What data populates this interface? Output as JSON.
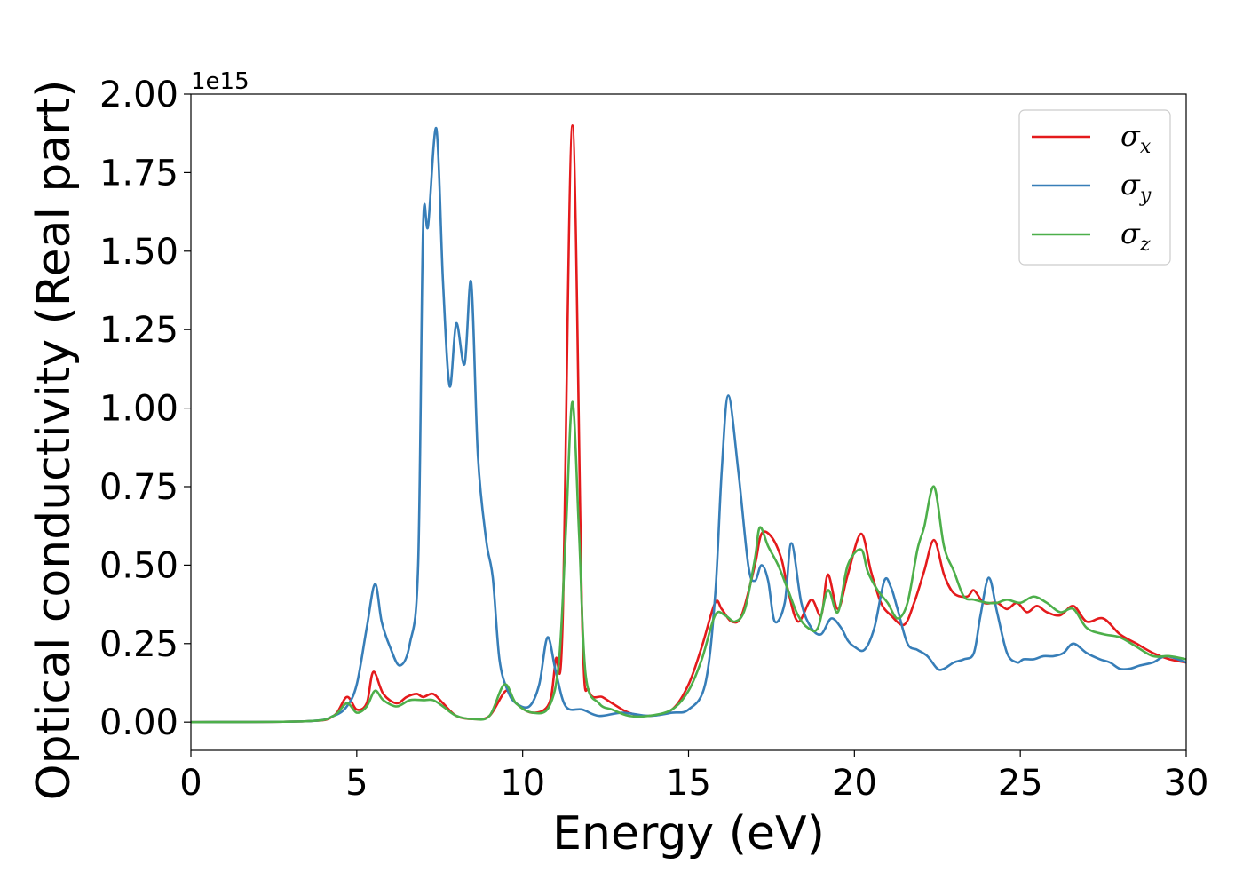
{
  "chart_data": {
    "type": "line",
    "xlabel": "Energy (eV)",
    "ylabel": "Optical conductivity (Real part)",
    "y_offset_label": "1e15",
    "xlim": [
      0,
      30
    ],
    "ylim": [
      -0.09,
      2.0
    ],
    "x_ticks": [
      0,
      5,
      10,
      15,
      20,
      25,
      30
    ],
    "x_tick_labels": [
      "0",
      "5",
      "10",
      "15",
      "20",
      "25",
      "30"
    ],
    "y_ticks": [
      0,
      0.25,
      0.5,
      0.75,
      1.0,
      1.25,
      1.5,
      1.75,
      2.0
    ],
    "y_tick_labels": [
      "0.00",
      "0.25",
      "0.50",
      "0.75",
      "1.00",
      "1.25",
      "1.50",
      "1.75",
      "2.00"
    ],
    "grid": false,
    "legend_position": "top-right",
    "series": [
      {
        "name": "σx",
        "legend_base": "σ",
        "legend_sub": "x",
        "color": "#e41a1c",
        "points": [
          [
            0,
            0
          ],
          [
            3.5,
            0.003
          ],
          [
            4.3,
            0.02
          ],
          [
            4.7,
            0.08
          ],
          [
            5.0,
            0.04
          ],
          [
            5.3,
            0.06
          ],
          [
            5.5,
            0.16
          ],
          [
            5.8,
            0.09
          ],
          [
            6.2,
            0.06
          ],
          [
            6.5,
            0.08
          ],
          [
            6.8,
            0.09
          ],
          [
            7.0,
            0.08
          ],
          [
            7.3,
            0.09
          ],
          [
            7.6,
            0.06
          ],
          [
            8.0,
            0.02
          ],
          [
            8.5,
            0.01
          ],
          [
            9.0,
            0.02
          ],
          [
            9.5,
            0.1
          ],
          [
            9.8,
            0.06
          ],
          [
            10.3,
            0.03
          ],
          [
            10.8,
            0.06
          ],
          [
            11.0,
            0.2
          ],
          [
            11.2,
            0.3
          ],
          [
            11.5,
            1.9
          ],
          [
            11.8,
            0.3
          ],
          [
            12.0,
            0.1
          ],
          [
            12.4,
            0.08
          ],
          [
            12.7,
            0.06
          ],
          [
            13.2,
            0.03
          ],
          [
            13.8,
            0.02
          ],
          [
            14.5,
            0.04
          ],
          [
            15.0,
            0.12
          ],
          [
            15.4,
            0.24
          ],
          [
            15.8,
            0.38
          ],
          [
            16.0,
            0.36
          ],
          [
            16.3,
            0.32
          ],
          [
            16.6,
            0.34
          ],
          [
            17.0,
            0.5
          ],
          [
            17.2,
            0.6
          ],
          [
            17.5,
            0.59
          ],
          [
            17.8,
            0.52
          ],
          [
            18.0,
            0.42
          ],
          [
            18.3,
            0.32
          ],
          [
            18.7,
            0.39
          ],
          [
            19.0,
            0.34
          ],
          [
            19.2,
            0.47
          ],
          [
            19.5,
            0.36
          ],
          [
            19.8,
            0.47
          ],
          [
            20.2,
            0.6
          ],
          [
            20.5,
            0.48
          ],
          [
            20.8,
            0.38
          ],
          [
            21.1,
            0.34
          ],
          [
            21.5,
            0.31
          ],
          [
            21.8,
            0.38
          ],
          [
            22.1,
            0.48
          ],
          [
            22.4,
            0.58
          ],
          [
            22.7,
            0.47
          ],
          [
            23.0,
            0.41
          ],
          [
            23.4,
            0.4
          ],
          [
            23.6,
            0.42
          ],
          [
            23.9,
            0.38
          ],
          [
            24.3,
            0.38
          ],
          [
            24.6,
            0.36
          ],
          [
            24.9,
            0.38
          ],
          [
            25.2,
            0.35
          ],
          [
            25.5,
            0.37
          ],
          [
            25.8,
            0.35
          ],
          [
            26.2,
            0.34
          ],
          [
            26.6,
            0.37
          ],
          [
            27.0,
            0.32
          ],
          [
            27.5,
            0.33
          ],
          [
            28.0,
            0.28
          ],
          [
            28.5,
            0.25
          ],
          [
            29.0,
            0.22
          ],
          [
            29.5,
            0.2
          ],
          [
            30,
            0.19
          ]
        ]
      },
      {
        "name": "σy",
        "legend_base": "σ",
        "legend_sub": "y",
        "color": "#377eb8",
        "points": [
          [
            0,
            0
          ],
          [
            3.5,
            0.003
          ],
          [
            4.3,
            0.02
          ],
          [
            4.7,
            0.05
          ],
          [
            5.0,
            0.12
          ],
          [
            5.3,
            0.3
          ],
          [
            5.55,
            0.44
          ],
          [
            5.75,
            0.32
          ],
          [
            6.0,
            0.24
          ],
          [
            6.3,
            0.18
          ],
          [
            6.6,
            0.25
          ],
          [
            6.85,
            0.5
          ],
          [
            7.0,
            1.58
          ],
          [
            7.15,
            1.58
          ],
          [
            7.4,
            1.89
          ],
          [
            7.6,
            1.4
          ],
          [
            7.8,
            1.07
          ],
          [
            8.0,
            1.27
          ],
          [
            8.25,
            1.14
          ],
          [
            8.45,
            1.4
          ],
          [
            8.65,
            0.85
          ],
          [
            8.9,
            0.58
          ],
          [
            9.1,
            0.46
          ],
          [
            9.3,
            0.2
          ],
          [
            9.55,
            0.1
          ],
          [
            9.8,
            0.06
          ],
          [
            10.2,
            0.05
          ],
          [
            10.5,
            0.12
          ],
          [
            10.75,
            0.27
          ],
          [
            11.0,
            0.16
          ],
          [
            11.3,
            0.05
          ],
          [
            11.8,
            0.04
          ],
          [
            12.3,
            0.02
          ],
          [
            13.0,
            0.03
          ],
          [
            13.8,
            0.02
          ],
          [
            14.5,
            0.03
          ],
          [
            15.0,
            0.04
          ],
          [
            15.5,
            0.12
          ],
          [
            15.8,
            0.4
          ],
          [
            16.0,
            0.8
          ],
          [
            16.2,
            1.04
          ],
          [
            16.5,
            0.8
          ],
          [
            16.8,
            0.5
          ],
          [
            17.0,
            0.45
          ],
          [
            17.2,
            0.5
          ],
          [
            17.4,
            0.45
          ],
          [
            17.6,
            0.32
          ],
          [
            17.9,
            0.38
          ],
          [
            18.1,
            0.57
          ],
          [
            18.4,
            0.38
          ],
          [
            18.7,
            0.3
          ],
          [
            19.0,
            0.28
          ],
          [
            19.3,
            0.33
          ],
          [
            19.6,
            0.3
          ],
          [
            19.8,
            0.26
          ],
          [
            20.0,
            0.24
          ],
          [
            20.3,
            0.23
          ],
          [
            20.6,
            0.3
          ],
          [
            20.9,
            0.45
          ],
          [
            21.1,
            0.43
          ],
          [
            21.3,
            0.36
          ],
          [
            21.6,
            0.25
          ],
          [
            21.9,
            0.23
          ],
          [
            22.2,
            0.21
          ],
          [
            22.5,
            0.17
          ],
          [
            22.7,
            0.17
          ],
          [
            23.0,
            0.19
          ],
          [
            23.3,
            0.2
          ],
          [
            23.6,
            0.22
          ],
          [
            23.8,
            0.34
          ],
          [
            24.05,
            0.46
          ],
          [
            24.3,
            0.35
          ],
          [
            24.6,
            0.22
          ],
          [
            24.9,
            0.19
          ],
          [
            25.1,
            0.2
          ],
          [
            25.4,
            0.2
          ],
          [
            25.7,
            0.21
          ],
          [
            26.0,
            0.21
          ],
          [
            26.3,
            0.22
          ],
          [
            26.6,
            0.25
          ],
          [
            27.0,
            0.22
          ],
          [
            27.4,
            0.2
          ],
          [
            27.7,
            0.19
          ],
          [
            28.0,
            0.17
          ],
          [
            28.3,
            0.17
          ],
          [
            28.6,
            0.18
          ],
          [
            29.0,
            0.19
          ],
          [
            29.4,
            0.21
          ],
          [
            30,
            0.19
          ]
        ]
      },
      {
        "name": "σz",
        "legend_base": "σ",
        "legend_sub": "z",
        "color": "#4daf4a",
        "points": [
          [
            0,
            0
          ],
          [
            3.5,
            0.003
          ],
          [
            4.3,
            0.02
          ],
          [
            4.7,
            0.06
          ],
          [
            5.0,
            0.03
          ],
          [
            5.3,
            0.05
          ],
          [
            5.55,
            0.1
          ],
          [
            5.8,
            0.07
          ],
          [
            6.2,
            0.05
          ],
          [
            6.6,
            0.07
          ],
          [
            7.0,
            0.07
          ],
          [
            7.3,
            0.07
          ],
          [
            7.6,
            0.05
          ],
          [
            8.0,
            0.02
          ],
          [
            8.5,
            0.01
          ],
          [
            9.0,
            0.02
          ],
          [
            9.45,
            0.12
          ],
          [
            9.8,
            0.06
          ],
          [
            10.3,
            0.03
          ],
          [
            10.8,
            0.05
          ],
          [
            11.1,
            0.2
          ],
          [
            11.3,
            0.6
          ],
          [
            11.5,
            1.02
          ],
          [
            11.7,
            0.6
          ],
          [
            11.9,
            0.15
          ],
          [
            12.3,
            0.06
          ],
          [
            12.7,
            0.04
          ],
          [
            13.2,
            0.02
          ],
          [
            13.8,
            0.02
          ],
          [
            14.5,
            0.04
          ],
          [
            15.0,
            0.1
          ],
          [
            15.4,
            0.2
          ],
          [
            15.8,
            0.34
          ],
          [
            16.1,
            0.34
          ],
          [
            16.4,
            0.32
          ],
          [
            16.7,
            0.36
          ],
          [
            17.0,
            0.52
          ],
          [
            17.15,
            0.62
          ],
          [
            17.4,
            0.56
          ],
          [
            17.7,
            0.5
          ],
          [
            18.0,
            0.42
          ],
          [
            18.3,
            0.34
          ],
          [
            18.6,
            0.3
          ],
          [
            18.9,
            0.3
          ],
          [
            19.2,
            0.42
          ],
          [
            19.5,
            0.35
          ],
          [
            19.8,
            0.5
          ],
          [
            20.2,
            0.55
          ],
          [
            20.4,
            0.48
          ],
          [
            20.7,
            0.42
          ],
          [
            21.0,
            0.38
          ],
          [
            21.3,
            0.33
          ],
          [
            21.6,
            0.38
          ],
          [
            21.9,
            0.55
          ],
          [
            22.1,
            0.62
          ],
          [
            22.4,
            0.75
          ],
          [
            22.7,
            0.56
          ],
          [
            23.0,
            0.48
          ],
          [
            23.3,
            0.4
          ],
          [
            23.6,
            0.39
          ],
          [
            24.0,
            0.38
          ],
          [
            24.3,
            0.38
          ],
          [
            24.6,
            0.39
          ],
          [
            25.0,
            0.38
          ],
          [
            25.4,
            0.4
          ],
          [
            25.8,
            0.38
          ],
          [
            26.2,
            0.35
          ],
          [
            26.6,
            0.36
          ],
          [
            27.0,
            0.3
          ],
          [
            27.5,
            0.28
          ],
          [
            28.0,
            0.27
          ],
          [
            28.5,
            0.24
          ],
          [
            29.0,
            0.21
          ],
          [
            29.5,
            0.21
          ],
          [
            30,
            0.2
          ]
        ]
      }
    ]
  }
}
